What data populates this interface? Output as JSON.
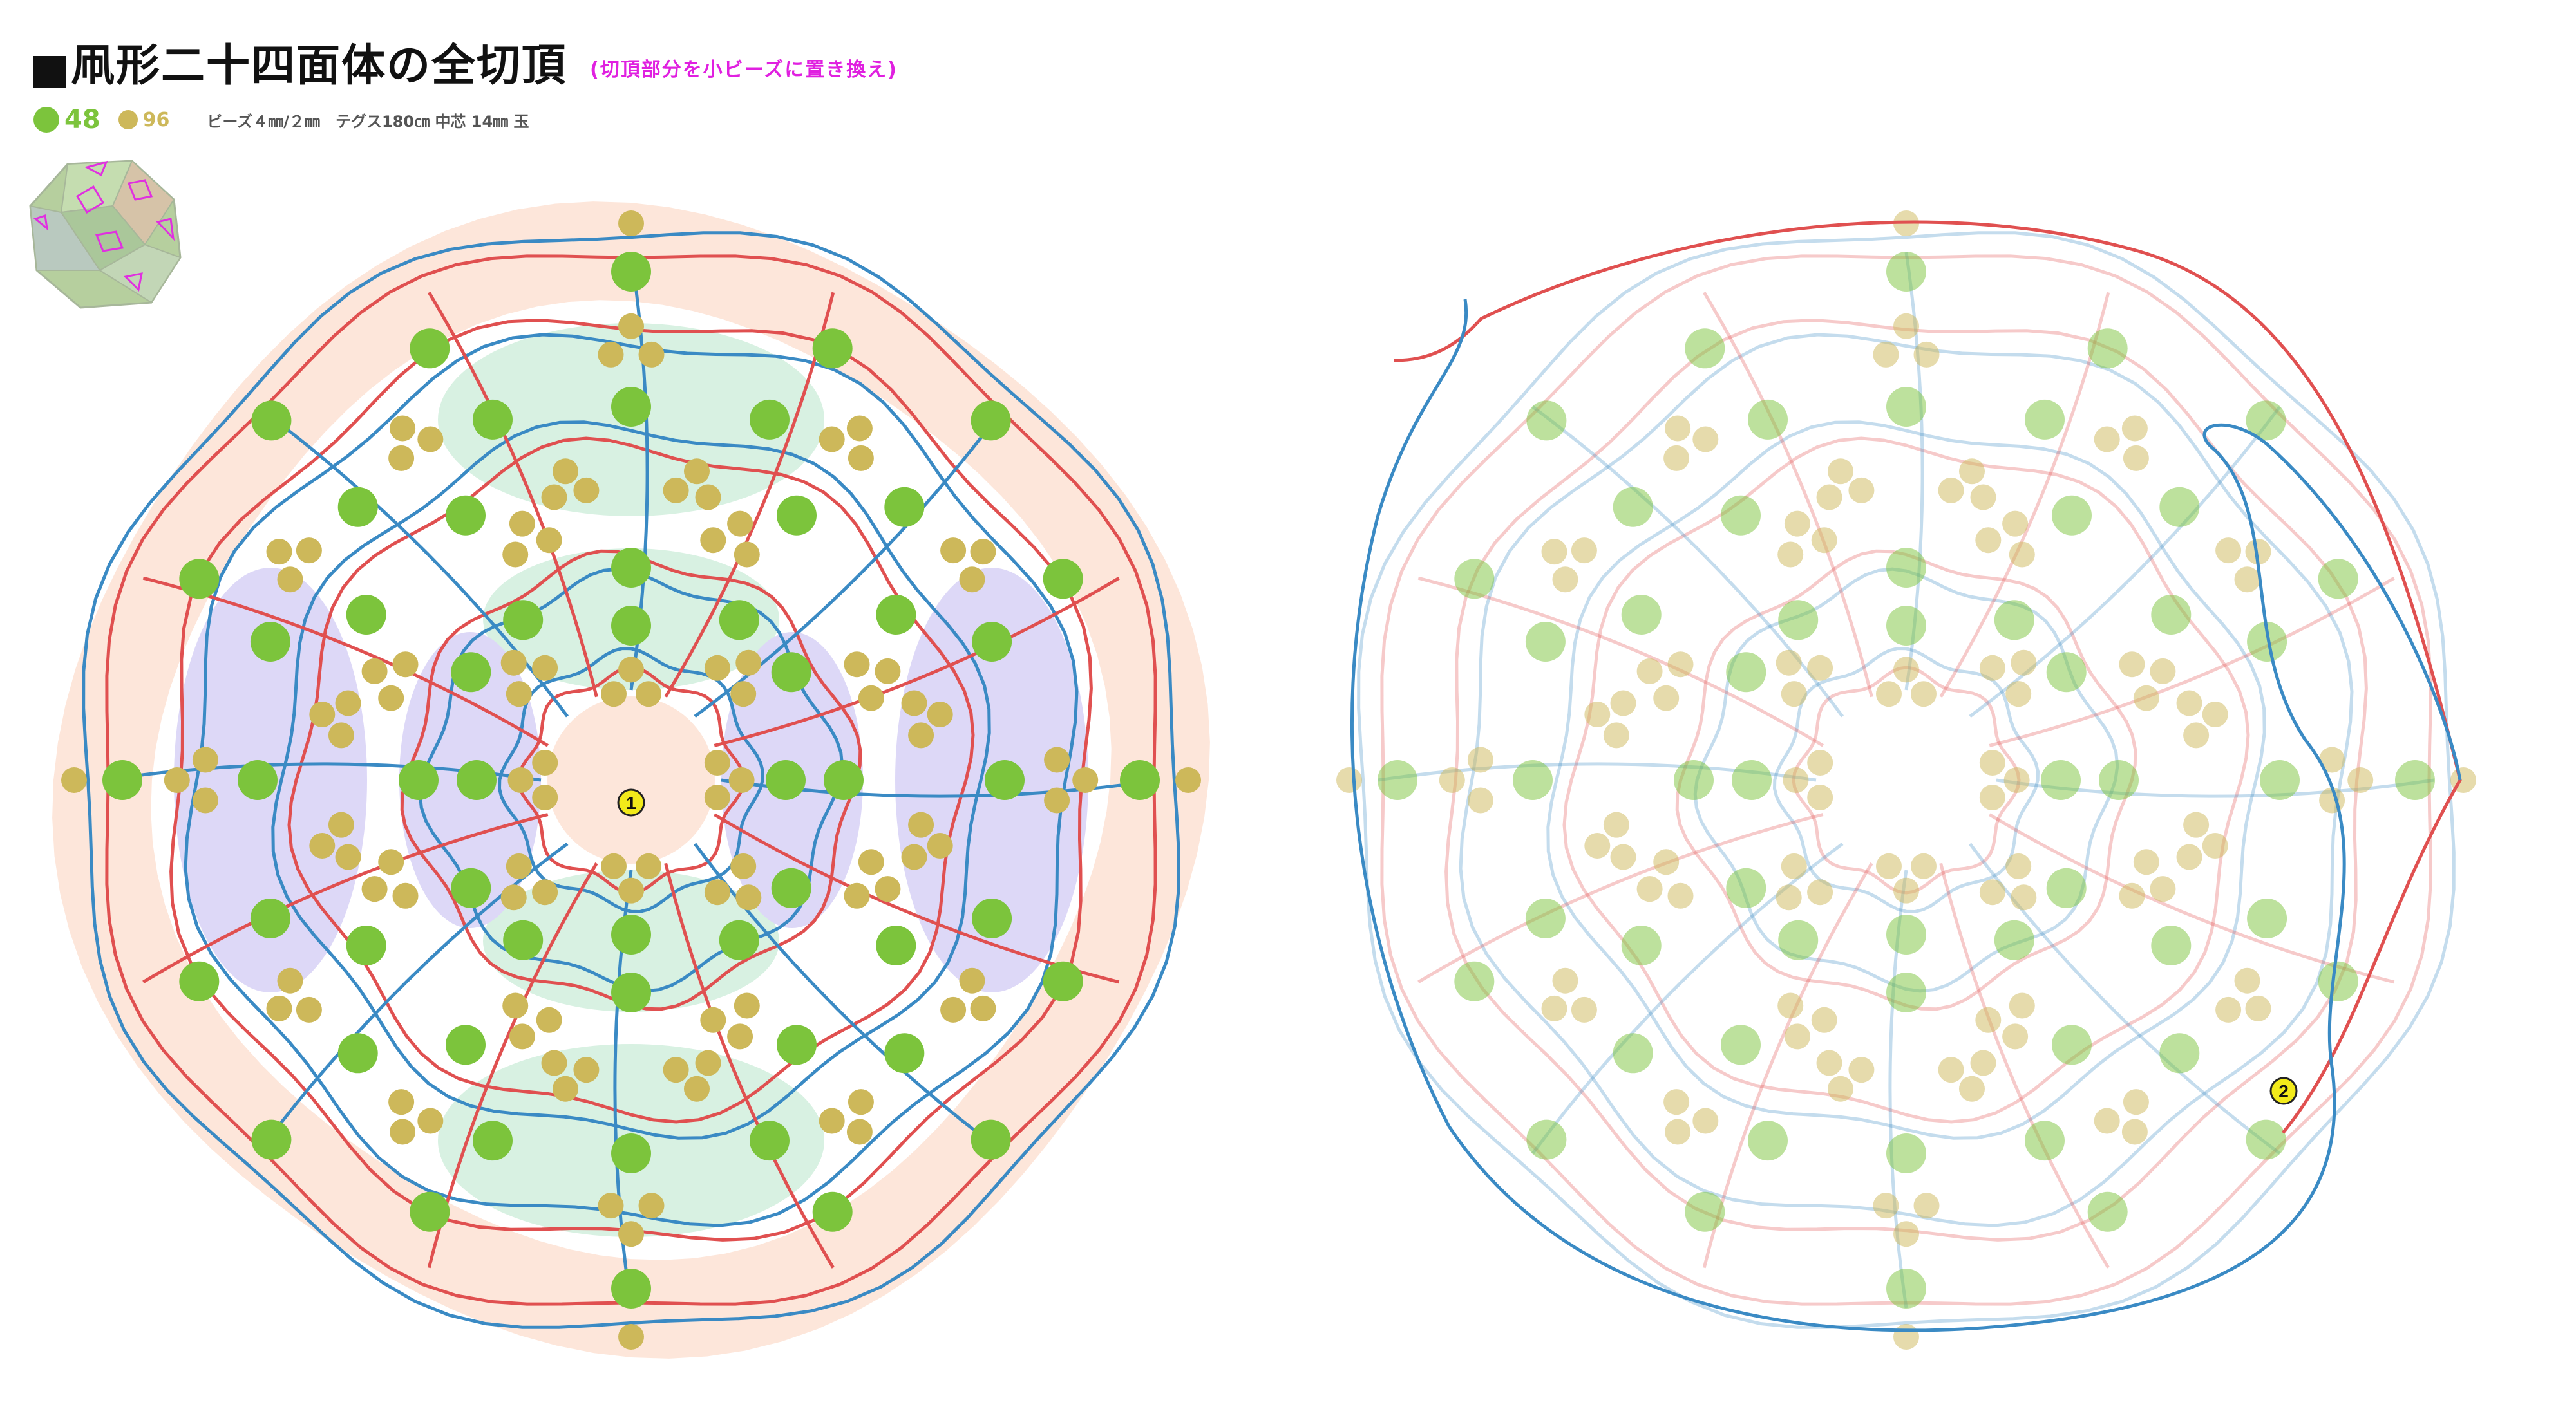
{
  "title": "凧形二十四面体の全切頂",
  "subtitle": "(切頂部分を小ビーズに置き換え)",
  "legend": {
    "large_count": "48",
    "small_count": "96",
    "materials": "ビーズ４㎜/２㎜　テグス180㎝ 中芯 14㎜ 玉",
    "large_color": "#7cc43c",
    "small_color": "#cdb85a"
  },
  "markers": {
    "step1": "1",
    "step2": "2"
  },
  "colors": {
    "red_thread": "#e05050",
    "blue_thread": "#3a8ac4",
    "region_outer": "#fde6da",
    "region_mint": "#d8f1e2",
    "region_lavender": "#ddd8f7",
    "marker_yellow": "#f2ea1a"
  }
}
